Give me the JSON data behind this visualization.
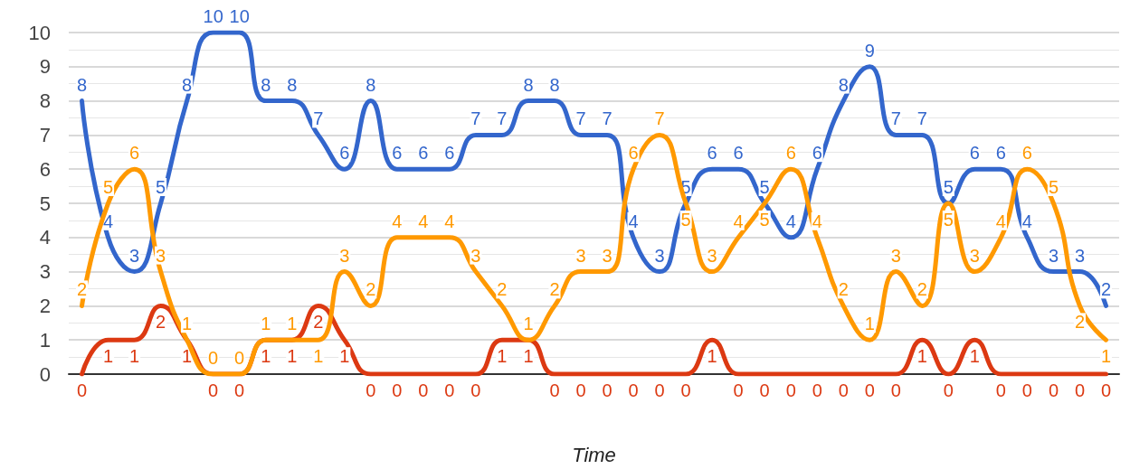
{
  "chart_data": {
    "type": "line",
    "xlabel": "Time",
    "categories": [
      null,
      null,
      null,
      null,
      null,
      null,
      null,
      null,
      null,
      null,
      null,
      null,
      null,
      null,
      null,
      null,
      null,
      null,
      null,
      null,
      null,
      null,
      null,
      null,
      null,
      null,
      null,
      null,
      null,
      null,
      null,
      null,
      null,
      null,
      null,
      null,
      null,
      null,
      null,
      null
    ],
    "series": [
      {
        "color": "#3366cc",
        "values": [
          8,
          4,
          3,
          5,
          8,
          10,
          10,
          8,
          8,
          7,
          6,
          8,
          6,
          6,
          6,
          7,
          7,
          8,
          8,
          7,
          7,
          4,
          3,
          5,
          6,
          6,
          5,
          4,
          6,
          8,
          9,
          7,
          7,
          5,
          6,
          6,
          4,
          3,
          3,
          2
        ]
      },
      {
        "color": "#dc3912",
        "values": [
          0,
          1,
          1,
          2,
          1,
          0,
          0,
          1,
          1,
          2,
          1,
          0,
          0,
          0,
          0,
          0,
          1,
          1,
          0,
          0,
          0,
          0,
          0,
          0,
          1,
          0,
          0,
          0,
          0,
          0,
          0,
          0,
          1,
          0,
          1,
          0,
          0,
          0,
          0,
          0
        ]
      },
      {
        "color": "#ff9900",
        "values": [
          2,
          5,
          6,
          3,
          1,
          0,
          0,
          1,
          1,
          1,
          3,
          2,
          4,
          4,
          4,
          3,
          2,
          1,
          2,
          3,
          3,
          6,
          7,
          5,
          3,
          4,
          5,
          6,
          4,
          2,
          1,
          3,
          2,
          5,
          3,
          4,
          6,
          5,
          2,
          1
        ]
      }
    ],
    "ylim": [
      0,
      10
    ],
    "yticks": [
      0,
      1,
      2,
      3,
      4,
      5,
      6,
      7,
      8,
      9,
      10
    ],
    "grid": "y",
    "data_labels": true,
    "marker": "none"
  }
}
